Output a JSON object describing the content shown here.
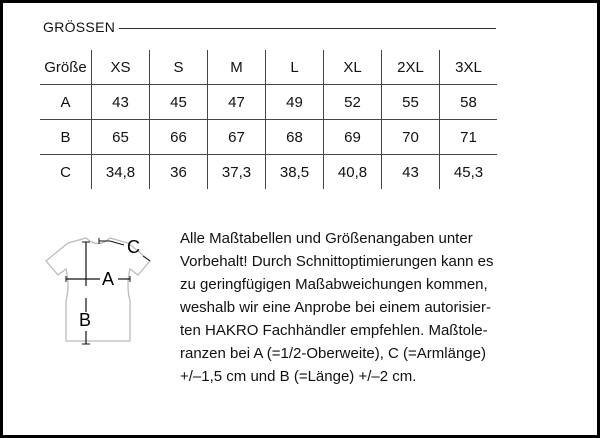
{
  "title": "GRÖSSEN",
  "table": {
    "header": [
      "Größe",
      "XS",
      "S",
      "M",
      "L",
      "XL",
      "2XL",
      "3XL"
    ],
    "rows": [
      [
        "A",
        "43",
        "45",
        "47",
        "49",
        "52",
        "55",
        "58"
      ],
      [
        "B",
        "65",
        "66",
        "67",
        "68",
        "69",
        "70",
        "71"
      ],
      [
        "C",
        "34,8",
        "36",
        "37,3",
        "38,5",
        "40,8",
        "43",
        "45,3"
      ]
    ]
  },
  "diagram": {
    "label_a": "A",
    "label_b": "B",
    "label_c": "C"
  },
  "paragraph_lines": [
    "Alle Maßtabellen und Größenangaben unter",
    "Vorbehalt! Durch Schnittoptimierungen kann es",
    "zu geringfügigen Maßabweichungen kommen,",
    "weshalb wir eine Anprobe bei einem autorisier-",
    "ten HAKRO Fachhändler empfehlen. Maßtole-",
    "ranzen bei A (=1/2-Oberweite), C (=Armlänge)",
    "+/–1,5 cm und B (=Länge) +/–2 cm."
  ]
}
